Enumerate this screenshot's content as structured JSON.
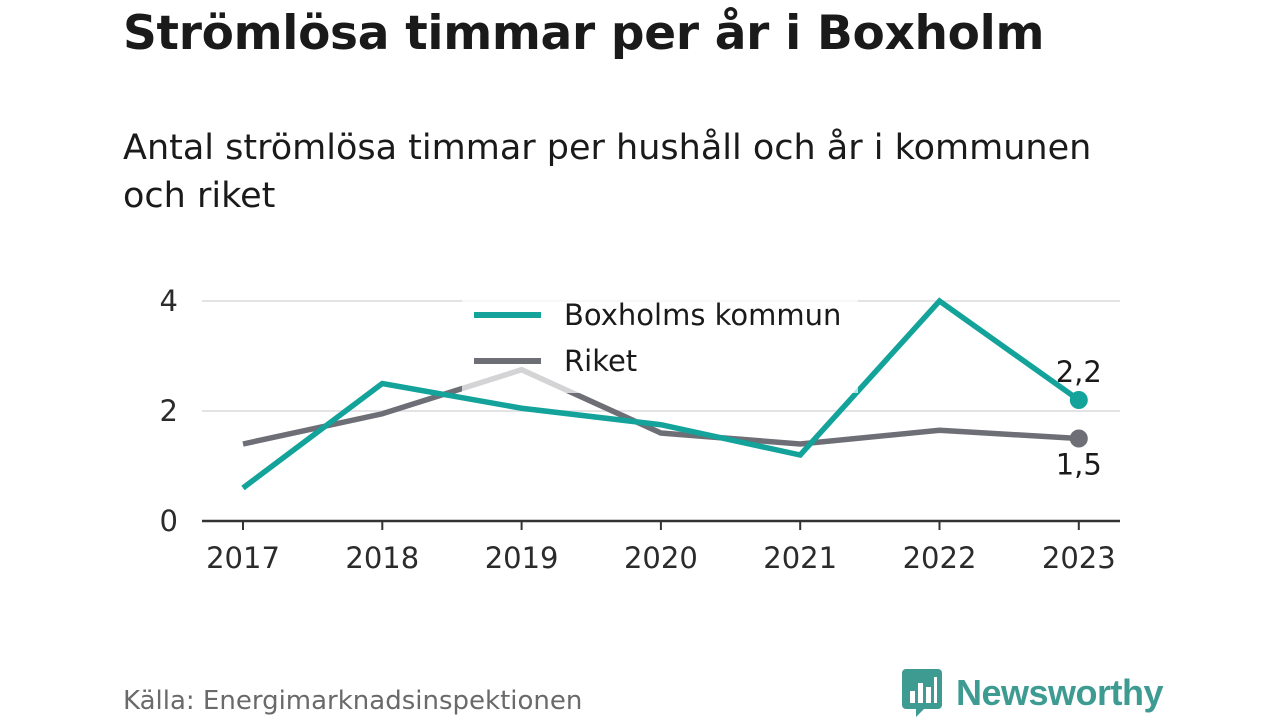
{
  "title": "Strömlösa timmar per år i Boxholm",
  "subtitle": "Antal strömlösa timmar per hushåll och år i kommunen och riket",
  "source": "Källa: Energimarknadsinspektionen",
  "brand": "Newsworthy",
  "colors": {
    "boxholm": "#13a39a",
    "riket": "#6e6e76",
    "grid": "#e3e3e6",
    "axis": "#333333",
    "brand": "#3e9b92"
  },
  "chart_data": {
    "type": "line",
    "x": [
      "2017",
      "2018",
      "2019",
      "2020",
      "2021",
      "2022",
      "2023"
    ],
    "ylim": [
      0,
      4
    ],
    "yticks": [
      "0",
      "2",
      "4"
    ],
    "grid": true,
    "legend_position": "top-center",
    "series": [
      {
        "name": "Boxholms kommun",
        "values": [
          0.6,
          2.5,
          2.05,
          1.75,
          1.2,
          4.0,
          2.2
        ],
        "end_label": "2,2"
      },
      {
        "name": "Riket",
        "values": [
          1.4,
          1.95,
          2.75,
          1.6,
          1.4,
          1.65,
          1.5
        ],
        "end_label": "1,5"
      }
    ]
  }
}
